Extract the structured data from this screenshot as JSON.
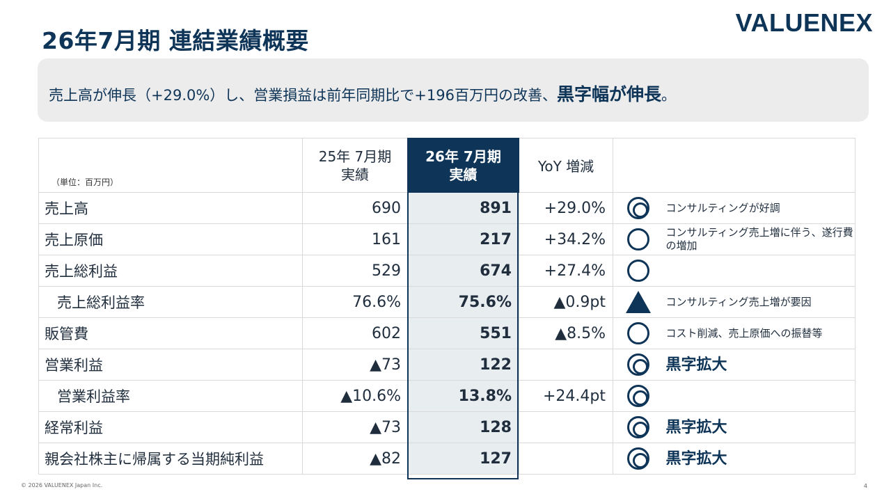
{
  "title": "26年7月期  連結業績概要",
  "logo": "VALUENEX",
  "summary": {
    "text": "売上高が伸長（+29.0%）し、営業損益は前年同期比で+196百万円の改善、",
    "highlight": "黒字幅が伸長",
    "tail": "。"
  },
  "table": {
    "unit": "（単位：百万円）",
    "headers": {
      "prev_line1": "25年 7月期",
      "prev_line2": "実績",
      "cur_line1": "26年 7月期",
      "cur_line2": "実績",
      "yoy": "YoY 増減"
    },
    "rows": [
      {
        "label": "売上高",
        "prev": "690",
        "cur": "891",
        "yoy": "+29.0%",
        "mark": "double-circle-icon",
        "note": "コンサルティングが好調"
      },
      {
        "label": "売上原価",
        "prev": "161",
        "cur": "217",
        "yoy": "+34.2%",
        "mark": "circle-icon",
        "note": "コンサルティング売上増に伴う、遂行費の増加"
      },
      {
        "label": "売上総利益",
        "prev": "529",
        "cur": "674",
        "yoy": "+27.4%",
        "mark": "circle-icon",
        "note": ""
      },
      {
        "label": "売上総利益率",
        "prev": "76.6%",
        "cur": "75.6%",
        "yoy": "▲0.9pt",
        "mark": "triangle-icon",
        "note": "コンサルティング売上増が要因"
      },
      {
        "label": "販管費",
        "prev": "602",
        "cur": "551",
        "yoy": "▲8.5%",
        "mark": "circle-icon",
        "note": "コスト削減、売上原価への振替等"
      },
      {
        "label": "営業利益",
        "prev": "▲73",
        "cur": "122",
        "yoy": "",
        "mark": "double-circle-icon",
        "note": "黒字拡大"
      },
      {
        "label": "営業利益率",
        "prev": "▲10.6%",
        "cur": "13.8%",
        "yoy": "+24.4pt",
        "mark": "double-circle-icon",
        "note": ""
      },
      {
        "label": "経常利益",
        "prev": "▲73",
        "cur": "128",
        "yoy": "",
        "mark": "double-circle-icon",
        "note": "黒字拡大"
      },
      {
        "label": "親会社株主に帰属する当期純利益",
        "prev": "▲82",
        "cur": "127",
        "yoy": "",
        "mark": "double-circle-icon",
        "note": "黒字拡大"
      }
    ]
  },
  "footer": {
    "copyright": "© 2026 VALUENEX Japan Inc.",
    "page": "4"
  },
  "colors": {
    "navy": "#0e3457",
    "highlight_column_bg": "#e8edf0",
    "summary_bg": "#ececec"
  }
}
